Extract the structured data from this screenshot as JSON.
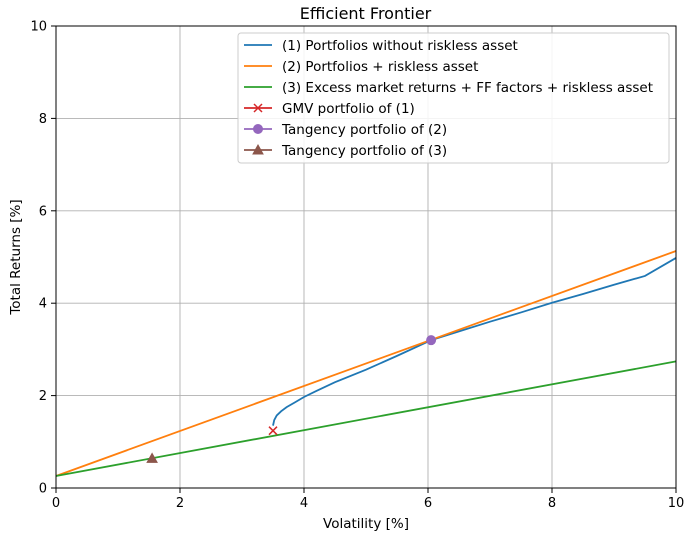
{
  "chart_data": {
    "type": "line",
    "title": "Efficient Frontier",
    "xlabel": "Volatility [%]",
    "ylabel": "Total Returns [%]",
    "xlim": [
      0,
      10
    ],
    "ylim": [
      0,
      10
    ],
    "xticks": [
      "0",
      "2",
      "4",
      "6",
      "8",
      "10"
    ],
    "yticks": [
      "0",
      "2",
      "4",
      "6",
      "8",
      "10"
    ],
    "grid": true,
    "legend_position": "top-right",
    "series": [
      {
        "name": "(1) Portfolios without riskless asset",
        "color": "#1f77b4",
        "marker": "none",
        "x": [
          3.5,
          3.52,
          3.56,
          3.63,
          3.72,
          3.85,
          4.0,
          4.2,
          4.5,
          5.0,
          5.5,
          6.05,
          6.5,
          7.0,
          7.5,
          8.0,
          8.5,
          9.0,
          9.5,
          10.0
        ],
        "y": [
          1.35,
          1.47,
          1.57,
          1.66,
          1.75,
          1.85,
          1.97,
          2.1,
          2.29,
          2.56,
          2.86,
          3.2,
          3.39,
          3.6,
          3.8,
          4.01,
          4.2,
          4.4,
          4.59,
          4.98
        ]
      },
      {
        "name": "(2) Portfolios + riskless asset",
        "color": "#ff7f0e",
        "marker": "none",
        "x": [
          0,
          10
        ],
        "y": [
          0.26,
          5.13
        ]
      },
      {
        "name": "(3) Excess market returns + FF factors + riskless asset",
        "color": "#2ca02c",
        "marker": "none",
        "x": [
          0,
          10
        ],
        "y": [
          0.26,
          2.74
        ]
      },
      {
        "name": "GMV portfolio of (1)",
        "color": "#d62728",
        "marker": "x",
        "x": [
          3.5
        ],
        "y": [
          1.24
        ]
      },
      {
        "name": "Tangency portfolio of (2)",
        "color": "#9467bd",
        "marker": "circle",
        "x": [
          6.05
        ],
        "y": [
          3.2
        ]
      },
      {
        "name": "Tangency portfolio of (3)",
        "color": "#8c564b",
        "marker": "triangle",
        "x": [
          1.55
        ],
        "y": [
          0.64
        ]
      }
    ]
  }
}
